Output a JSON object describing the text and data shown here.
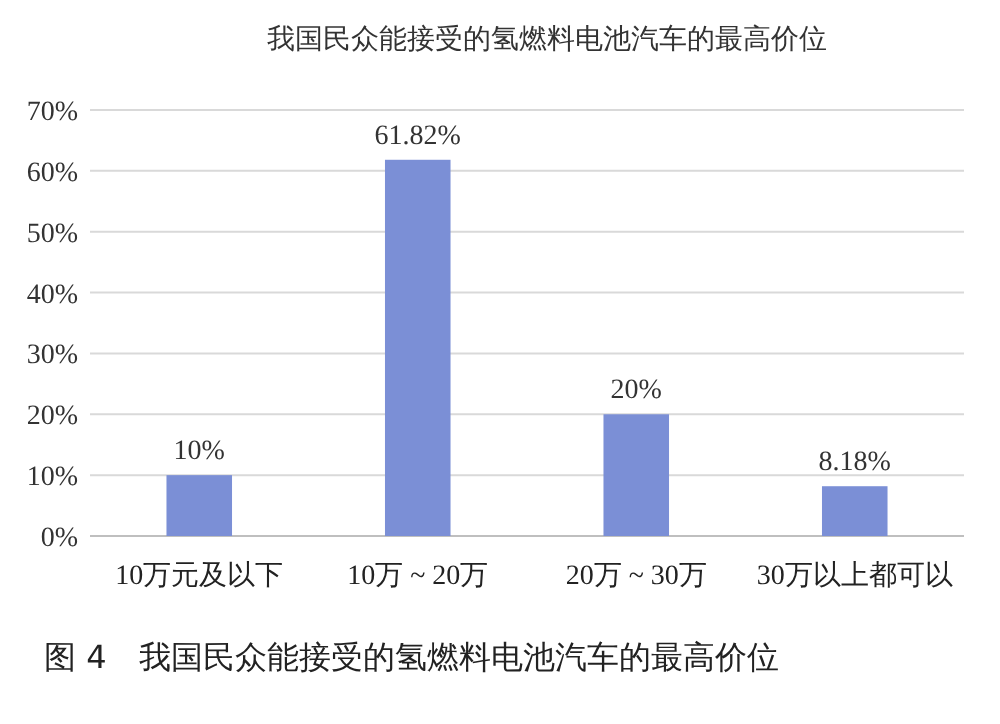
{
  "chart_data": {
    "type": "bar",
    "title": "我国民众能接受的氢燃料电池汽车的最高价位",
    "categories": [
      "10万元及以下",
      "10万 ~ 20万",
      "20万 ~ 30万",
      "30万以上都可以"
    ],
    "values": [
      10,
      61.82,
      20,
      8.18
    ],
    "value_labels": [
      "10%",
      "61.82%",
      "20%",
      "8.18%"
    ],
    "color": "#7b8fd6",
    "ylim": [
      0,
      70
    ],
    "yticks": [
      {
        "value": 0,
        "label": "0%"
      },
      {
        "value": 10,
        "label": "10%"
      },
      {
        "value": 20,
        "label": "20%"
      },
      {
        "value": 30,
        "label": "30%"
      },
      {
        "value": 40,
        "label": "40%"
      },
      {
        "value": 50,
        "label": "50%"
      },
      {
        "value": 60,
        "label": "60%"
      },
      {
        "value": 70,
        "label": "70%"
      }
    ],
    "grid": "y",
    "annotations": [
      "图 4　我国民众能接受的氢燃料电池汽车的最高价位"
    ]
  }
}
